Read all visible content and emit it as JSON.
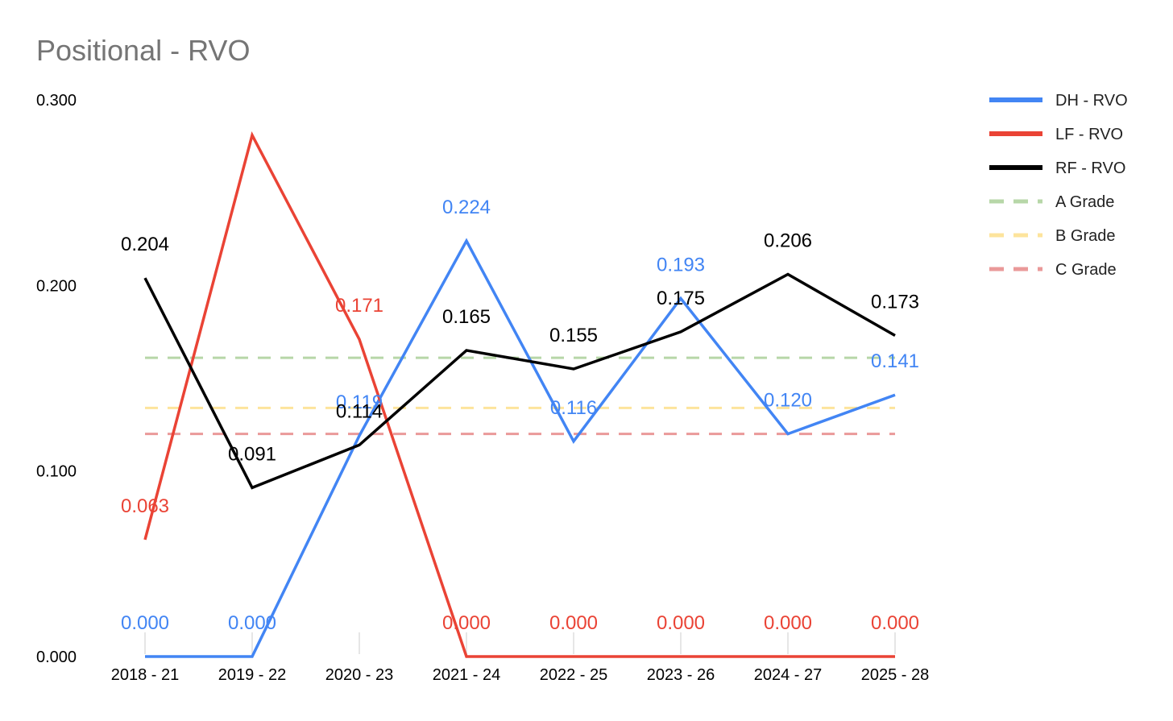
{
  "chart_data": {
    "type": "line",
    "title": "Positional - RVO",
    "xlabel": "",
    "ylabel": "",
    "ylim": [
      0,
      0.3
    ],
    "yticks": [
      "0.000",
      "0.100",
      "0.200",
      "0.300"
    ],
    "yticks_values": [
      0,
      0.1,
      0.2,
      0.3
    ],
    "categories": [
      "2018 - 21",
      "2019 - 22",
      "2020 - 23",
      "2021 - 24",
      "2022 - 25",
      "2023 - 26",
      "2024 - 27",
      "2025 - 28"
    ],
    "legend_position": "right",
    "series": [
      {
        "name": "DH - RVO",
        "color": "#4285f4",
        "style": "solid",
        "values": [
          0.0,
          0.0,
          0.119,
          0.224,
          0.116,
          0.193,
          0.12,
          0.141
        ],
        "labels": [
          "0.000",
          "0.000",
          "0.119",
          "0.224",
          "0.116",
          "0.193",
          "0.120",
          "0.141"
        ]
      },
      {
        "name": "LF - RVO",
        "color": "#ea4335",
        "style": "solid",
        "values": [
          0.063,
          0.281,
          0.171,
          0.0,
          0.0,
          0.0,
          0.0,
          0.0
        ],
        "labels": [
          "0.063",
          null,
          "0.171",
          "0.000",
          "0.000",
          "0.000",
          "0.000",
          "0.000"
        ]
      },
      {
        "name": "RF - RVO",
        "color": "#000000",
        "style": "solid",
        "values": [
          0.204,
          0.091,
          0.114,
          0.165,
          0.155,
          0.175,
          0.206,
          0.173
        ],
        "labels": [
          "0.204",
          "0.091",
          "0.114",
          "0.165",
          "0.155",
          "0.175",
          "0.206",
          "0.173"
        ]
      },
      {
        "name": "A Grade",
        "color": "#b7d7a8",
        "style": "dashed",
        "values": [
          0.161,
          0.161,
          0.161,
          0.161,
          0.161,
          0.161,
          0.161,
          0.161
        ]
      },
      {
        "name": "B Grade",
        "color": "#fde49c",
        "style": "dashed",
        "values": [
          0.134,
          0.134,
          0.134,
          0.134,
          0.134,
          0.134,
          0.134,
          0.134
        ]
      },
      {
        "name": "C Grade",
        "color": "#ea9999",
        "style": "dashed",
        "values": [
          0.12,
          0.12,
          0.12,
          0.12,
          0.12,
          0.12,
          0.12,
          0.12
        ]
      }
    ]
  }
}
